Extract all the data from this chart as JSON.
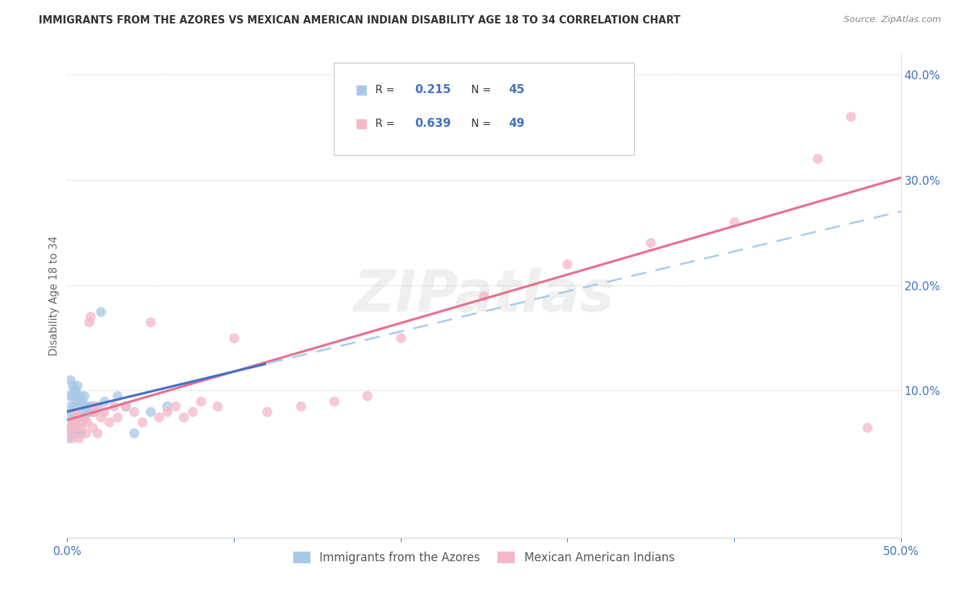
{
  "title": "IMMIGRANTS FROM THE AZORES VS MEXICAN AMERICAN INDIAN DISABILITY AGE 18 TO 34 CORRELATION CHART",
  "source": "Source: ZipAtlas.com",
  "ylabel": "Disability Age 18 to 34",
  "xlim": [
    0.0,
    0.5
  ],
  "ylim": [
    -0.04,
    0.42
  ],
  "xticks": [
    0.0,
    0.1,
    0.2,
    0.3,
    0.4,
    0.5
  ],
  "xticklabels": [
    "0.0%",
    "",
    "",
    "",
    "",
    "50.0%"
  ],
  "yticks": [
    0.1,
    0.2,
    0.3,
    0.4
  ],
  "yticklabels": [
    "10.0%",
    "20.0%",
    "30.0%",
    "40.0%"
  ],
  "series1_R": 0.215,
  "series1_N": 45,
  "series2_R": 0.639,
  "series2_N": 49,
  "blue_scatter_color": "#a8c8e8",
  "pink_scatter_color": "#f4b8c8",
  "blue_line_color": "#4472c4",
  "pink_line_color": "#e87090",
  "blue_dash_color": "#aaccee",
  "axis_label_color": "#4472c4",
  "tick_color": "#4472c4",
  "title_color": "#333333",
  "source_color": "#888888",
  "grid_color": "#dddddd",
  "legend_labels": [
    "Immigrants from the Azores",
    "Mexican American Indians"
  ],
  "watermark": "ZIPatlas",
  "series1_x": [
    0.001,
    0.001,
    0.001,
    0.002,
    0.002,
    0.002,
    0.003,
    0.003,
    0.003,
    0.003,
    0.004,
    0.004,
    0.004,
    0.005,
    0.005,
    0.005,
    0.005,
    0.006,
    0.006,
    0.006,
    0.006,
    0.006,
    0.007,
    0.007,
    0.008,
    0.008,
    0.008,
    0.009,
    0.009,
    0.01,
    0.01,
    0.011,
    0.012,
    0.013,
    0.014,
    0.015,
    0.016,
    0.018,
    0.02,
    0.022,
    0.03,
    0.035,
    0.04,
    0.05,
    0.06
  ],
  "series1_y": [
    0.095,
    0.075,
    0.055,
    0.11,
    0.085,
    0.065,
    0.105,
    0.095,
    0.08,
    0.06,
    0.1,
    0.085,
    0.07,
    0.1,
    0.09,
    0.075,
    0.06,
    0.105,
    0.095,
    0.085,
    0.075,
    0.06,
    0.09,
    0.075,
    0.095,
    0.08,
    0.06,
    0.09,
    0.075,
    0.095,
    0.075,
    0.085,
    0.08,
    0.085,
    0.08,
    0.085,
    0.08,
    0.085,
    0.175,
    0.09,
    0.095,
    0.085,
    0.06,
    0.08,
    0.085
  ],
  "series2_x": [
    0.001,
    0.002,
    0.003,
    0.003,
    0.004,
    0.005,
    0.006,
    0.007,
    0.007,
    0.008,
    0.009,
    0.01,
    0.011,
    0.012,
    0.013,
    0.014,
    0.015,
    0.016,
    0.017,
    0.018,
    0.02,
    0.022,
    0.025,
    0.028,
    0.03,
    0.035,
    0.04,
    0.045,
    0.05,
    0.055,
    0.06,
    0.065,
    0.07,
    0.075,
    0.08,
    0.09,
    0.1,
    0.12,
    0.14,
    0.16,
    0.18,
    0.2,
    0.25,
    0.3,
    0.35,
    0.4,
    0.45,
    0.47,
    0.48
  ],
  "series2_y": [
    0.065,
    0.06,
    0.07,
    0.055,
    0.07,
    0.08,
    0.065,
    0.075,
    0.055,
    0.065,
    0.07,
    0.075,
    0.06,
    0.07,
    0.165,
    0.17,
    0.065,
    0.08,
    0.085,
    0.06,
    0.075,
    0.08,
    0.07,
    0.085,
    0.075,
    0.085,
    0.08,
    0.07,
    0.165,
    0.075,
    0.08,
    0.085,
    0.075,
    0.08,
    0.09,
    0.085,
    0.15,
    0.08,
    0.085,
    0.09,
    0.095,
    0.15,
    0.19,
    0.22,
    0.24,
    0.26,
    0.32,
    0.36,
    0.065
  ]
}
